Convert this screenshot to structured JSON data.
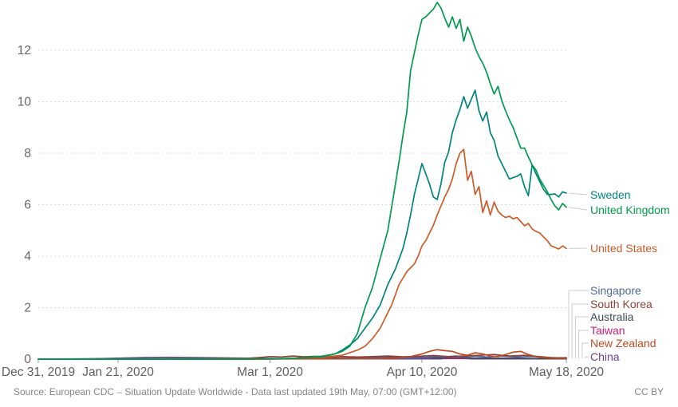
{
  "chart_data": {
    "type": "line",
    "title": "",
    "x_axis": {
      "unit": "days since Dec 31, 2019",
      "range_days": [
        0,
        139
      ],
      "tick_days": [
        0,
        21,
        61,
        101,
        139
      ],
      "tick_labels": [
        "Dec 31, 2019",
        "Jan 21, 2020",
        "Mar 1, 2020",
        "Apr 10, 2020",
        "May 18, 2020"
      ]
    },
    "y_axis": {
      "ticks": [
        0,
        2,
        4,
        6,
        8,
        10,
        12
      ],
      "range": [
        0,
        13.95
      ]
    },
    "grid": "horizontal-dashed",
    "legend_position": "right-of-line-ends",
    "series": [
      {
        "name": "Taiwan",
        "color": "#CE1B76",
        "points": [
          [
            0,
            0
          ],
          [
            50,
            0.01
          ],
          [
            80,
            0.02
          ],
          [
            90,
            0.04
          ],
          [
            100,
            0.02
          ],
          [
            110,
            0.03
          ],
          [
            120,
            0.01
          ],
          [
            139,
            0.01
          ]
        ]
      },
      {
        "name": "China",
        "color": "#6D3E91",
        "points": [
          [
            0,
            0
          ],
          [
            10,
            0.01
          ],
          [
            16,
            0.02
          ],
          [
            22,
            0.04
          ],
          [
            28,
            0.06
          ],
          [
            34,
            0.07
          ],
          [
            40,
            0.06
          ],
          [
            46,
            0.05
          ],
          [
            52,
            0.04
          ],
          [
            58,
            0.03
          ],
          [
            64,
            0.02
          ],
          [
            70,
            0.01
          ],
          [
            80,
            0.01
          ],
          [
            90,
            0.01
          ],
          [
            100,
            0.01
          ],
          [
            106,
            0.01
          ],
          [
            108,
            0.1
          ],
          [
            110,
            0.12
          ],
          [
            112,
            0.05
          ],
          [
            114,
            0.01
          ],
          [
            120,
            0.01
          ],
          [
            130,
            0.01
          ],
          [
            139,
            0.01
          ]
        ]
      },
      {
        "name": "Australia",
        "color": "#3D4A5C",
        "points": [
          [
            0,
            0
          ],
          [
            60,
            0.01
          ],
          [
            70,
            0.02
          ],
          [
            80,
            0.04
          ],
          [
            85,
            0.06
          ],
          [
            90,
            0.08
          ],
          [
            95,
            0.06
          ],
          [
            100,
            0.08
          ],
          [
            105,
            0.05
          ],
          [
            110,
            0.06
          ],
          [
            115,
            0.04
          ],
          [
            120,
            0.03
          ],
          [
            125,
            0.04
          ],
          [
            130,
            0.02
          ],
          [
            135,
            0.02
          ],
          [
            139,
            0.02
          ]
        ]
      },
      {
        "name": "Singapore",
        "color": "#4C6A9C",
        "points": [
          [
            0,
            0
          ],
          [
            30,
            0.01
          ],
          [
            50,
            0.01
          ],
          [
            70,
            0.02
          ],
          [
            85,
            0.03
          ],
          [
            90,
            0.06
          ],
          [
            95,
            0.04
          ],
          [
            100,
            0.05
          ],
          [
            105,
            0.1
          ],
          [
            110,
            0.07
          ],
          [
            115,
            0.12
          ],
          [
            118,
            0.08
          ],
          [
            122,
            0.12
          ],
          [
            126,
            0.09
          ],
          [
            130,
            0.1
          ],
          [
            134,
            0.06
          ],
          [
            137,
            0.05
          ],
          [
            139,
            0.06
          ]
        ]
      },
      {
        "name": "South Korea",
        "color": "#944038",
        "points": [
          [
            0,
            0
          ],
          [
            40,
            0.01
          ],
          [
            55,
            0.03
          ],
          [
            58,
            0.06
          ],
          [
            61,
            0.1
          ],
          [
            64,
            0.08
          ],
          [
            67,
            0.12
          ],
          [
            70,
            0.09
          ],
          [
            73,
            0.11
          ],
          [
            76,
            0.07
          ],
          [
            80,
            0.1
          ],
          [
            84,
            0.08
          ],
          [
            88,
            0.1
          ],
          [
            92,
            0.12
          ],
          [
            96,
            0.09
          ],
          [
            100,
            0.11
          ],
          [
            104,
            0.14
          ],
          [
            108,
            0.1
          ],
          [
            112,
            0.12
          ],
          [
            116,
            0.15
          ],
          [
            120,
            0.18
          ],
          [
            124,
            0.12
          ],
          [
            128,
            0.15
          ],
          [
            132,
            0.1
          ],
          [
            135,
            0.06
          ],
          [
            139,
            0.04
          ]
        ]
      },
      {
        "name": "New Zealand",
        "color": "#BE4B1F",
        "points": [
          [
            0,
            0
          ],
          [
            85,
            0.01
          ],
          [
            90,
            0.02
          ],
          [
            95,
            0.05
          ],
          [
            98,
            0.1
          ],
          [
            101,
            0.2
          ],
          [
            103,
            0.3
          ],
          [
            105,
            0.37
          ],
          [
            107,
            0.33
          ],
          [
            109,
            0.3
          ],
          [
            111,
            0.2
          ],
          [
            113,
            0.15
          ],
          [
            115,
            0.25
          ],
          [
            117,
            0.2
          ],
          [
            119,
            0.12
          ],
          [
            121,
            0.1
          ],
          [
            123,
            0.18
          ],
          [
            125,
            0.27
          ],
          [
            127,
            0.3
          ],
          [
            129,
            0.18
          ],
          [
            131,
            0.1
          ],
          [
            133,
            0.06
          ],
          [
            135,
            0.04
          ],
          [
            139,
            0.03
          ]
        ]
      },
      {
        "name": "United States",
        "color": "#CE5A28",
        "points": [
          [
            0,
            0
          ],
          [
            40,
            0
          ],
          [
            60,
            0
          ],
          [
            65,
            0.01
          ],
          [
            70,
            0.03
          ],
          [
            74,
            0.06
          ],
          [
            78,
            0.12
          ],
          [
            80,
            0.15
          ],
          [
            82,
            0.25
          ],
          [
            84,
            0.35
          ],
          [
            86,
            0.5
          ],
          [
            88,
            0.8
          ],
          [
            90,
            1.2
          ],
          [
            92,
            1.8
          ],
          [
            93,
            2.1
          ],
          [
            95,
            2.9
          ],
          [
            97,
            3.4
          ],
          [
            99,
            3.7
          ],
          [
            100,
            4.0
          ],
          [
            101,
            4.4
          ],
          [
            102,
            4.6
          ],
          [
            103,
            4.9
          ],
          [
            104,
            5.2
          ],
          [
            105,
            5.6
          ],
          [
            107,
            6.3
          ],
          [
            108,
            6.6
          ],
          [
            109,
            7.0
          ],
          [
            110,
            7.6
          ],
          [
            111,
            8.0
          ],
          [
            112,
            8.15
          ],
          [
            113,
            6.95
          ],
          [
            114,
            7.3
          ],
          [
            115,
            6.4
          ],
          [
            116,
            6.7
          ],
          [
            117,
            5.7
          ],
          [
            118,
            6.15
          ],
          [
            119,
            5.6
          ],
          [
            120,
            6.1
          ],
          [
            121,
            5.75
          ],
          [
            122,
            5.6
          ],
          [
            123,
            5.5
          ],
          [
            124,
            5.55
          ],
          [
            125,
            5.45
          ],
          [
            126,
            5.5
          ],
          [
            127,
            5.35
          ],
          [
            128,
            5.18
          ],
          [
            129,
            5.27
          ],
          [
            130,
            5.06
          ],
          [
            131,
            4.96
          ],
          [
            132,
            4.9
          ],
          [
            133,
            4.75
          ],
          [
            134,
            4.6
          ],
          [
            135,
            4.4
          ],
          [
            136,
            4.34
          ],
          [
            137,
            4.28
          ],
          [
            138,
            4.4
          ],
          [
            139,
            4.3
          ]
        ]
      },
      {
        "name": "Sweden",
        "color": "#00847E",
        "points": [
          [
            0,
            0
          ],
          [
            40,
            0
          ],
          [
            60,
            0.01
          ],
          [
            65,
            0.02
          ],
          [
            70,
            0.05
          ],
          [
            75,
            0.1
          ],
          [
            78,
            0.2
          ],
          [
            80,
            0.35
          ],
          [
            82,
            0.55
          ],
          [
            84,
            0.8
          ],
          [
            86,
            1.2
          ],
          [
            88,
            1.6
          ],
          [
            90,
            2.1
          ],
          [
            92,
            2.9
          ],
          [
            94,
            3.5
          ],
          [
            96,
            4.3
          ],
          [
            97,
            4.9
          ],
          [
            98,
            5.6
          ],
          [
            99,
            6.4
          ],
          [
            100,
            7.0
          ],
          [
            101,
            7.6
          ],
          [
            102,
            7.2
          ],
          [
            103,
            6.8
          ],
          [
            104,
            6.3
          ],
          [
            105,
            6.2
          ],
          [
            106,
            6.8
          ],
          [
            107,
            7.65
          ],
          [
            108,
            8.05
          ],
          [
            109,
            8.8
          ],
          [
            110,
            9.3
          ],
          [
            111,
            9.7
          ],
          [
            112,
            10.2
          ],
          [
            113,
            9.75
          ],
          [
            114,
            10.1
          ],
          [
            115,
            10.45
          ],
          [
            116,
            9.65
          ],
          [
            117,
            9.25
          ],
          [
            118,
            9.6
          ],
          [
            119,
            8.8
          ],
          [
            120,
            8.5
          ],
          [
            121,
            7.9
          ],
          [
            122,
            7.6
          ],
          [
            123,
            7.3
          ],
          [
            124,
            7.0
          ],
          [
            125,
            7.05
          ],
          [
            126,
            7.1
          ],
          [
            127,
            7.2
          ],
          [
            128,
            6.7
          ],
          [
            129,
            6.35
          ],
          [
            130,
            7.55
          ],
          [
            131,
            7.2
          ],
          [
            132,
            6.9
          ],
          [
            133,
            6.6
          ],
          [
            134,
            6.4
          ],
          [
            135,
            6.4
          ],
          [
            136,
            6.42
          ],
          [
            137,
            6.3
          ],
          [
            138,
            6.5
          ],
          [
            139,
            6.45
          ]
        ]
      },
      {
        "name": "United Kingdom",
        "color": "#009C4D",
        "points": [
          [
            0,
            0
          ],
          [
            40,
            0
          ],
          [
            55,
            0
          ],
          [
            60,
            0.01
          ],
          [
            64,
            0.02
          ],
          [
            68,
            0.04
          ],
          [
            72,
            0.08
          ],
          [
            75,
            0.12
          ],
          [
            78,
            0.2
          ],
          [
            80,
            0.3
          ],
          [
            82,
            0.5
          ],
          [
            84,
            1.0
          ],
          [
            86,
            2.0
          ],
          [
            88,
            2.8
          ],
          [
            90,
            3.9
          ],
          [
            92,
            5.0
          ],
          [
            94,
            6.8
          ],
          [
            95,
            7.7
          ],
          [
            96,
            8.7
          ],
          [
            97,
            9.6
          ],
          [
            98,
            11.2
          ],
          [
            99,
            11.9
          ],
          [
            100,
            12.6
          ],
          [
            101,
            13.2
          ],
          [
            102,
            13.3
          ],
          [
            103,
            13.45
          ],
          [
            104,
            13.6
          ],
          [
            105,
            13.86
          ],
          [
            106,
            13.65
          ],
          [
            107,
            13.25
          ],
          [
            108,
            12.9
          ],
          [
            109,
            13.3
          ],
          [
            110,
            12.85
          ],
          [
            111,
            13.2
          ],
          [
            112,
            12.35
          ],
          [
            113,
            12.9
          ],
          [
            114,
            12.55
          ],
          [
            115,
            12.1
          ],
          [
            116,
            11.75
          ],
          [
            117,
            11.5
          ],
          [
            118,
            11.15
          ],
          [
            119,
            10.7
          ],
          [
            120,
            10.3
          ],
          [
            121,
            10.6
          ],
          [
            122,
            10.05
          ],
          [
            123,
            9.65
          ],
          [
            124,
            9.3
          ],
          [
            125,
            9.0
          ],
          [
            126,
            8.6
          ],
          [
            127,
            8.2
          ],
          [
            128,
            8.2
          ],
          [
            129,
            7.85
          ],
          [
            130,
            7.55
          ],
          [
            131,
            7.35
          ],
          [
            132,
            7.0
          ],
          [
            133,
            6.75
          ],
          [
            134,
            6.5
          ],
          [
            135,
            6.2
          ],
          [
            136,
            5.95
          ],
          [
            137,
            5.8
          ],
          [
            138,
            6.05
          ],
          [
            139,
            5.9
          ]
        ]
      }
    ]
  },
  "legend": {
    "sweden": {
      "label": "Sweden",
      "color": "#00847E"
    },
    "uk": {
      "label": "United Kingdom",
      "color": "#009C4D"
    },
    "us": {
      "label": "United States",
      "color": "#CE5A28"
    },
    "singapore": {
      "label": "Singapore",
      "color": "#4C6A9C"
    },
    "southkorea": {
      "label": "South Korea",
      "color": "#944038"
    },
    "australia": {
      "label": "Australia",
      "color": "#3D4A5C"
    },
    "taiwan": {
      "label": "Taiwan",
      "color": "#CE1B76"
    },
    "newzealand": {
      "label": "New Zealand",
      "color": "#BE4B1F"
    },
    "china": {
      "label": "China",
      "color": "#6D3E91"
    }
  },
  "footer": {
    "source": "Source: European CDC – Situation Update Worldwide - Data last updated 19th May, 07:00 (GMT+12:00)",
    "license": "CC BY"
  }
}
